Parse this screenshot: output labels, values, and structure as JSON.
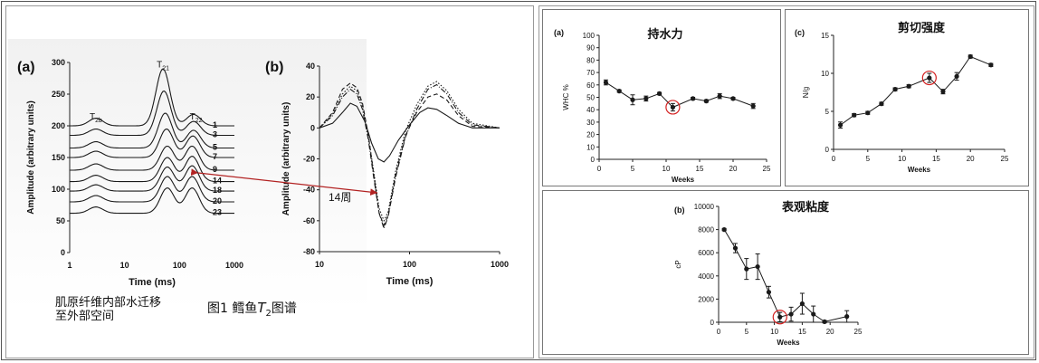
{
  "captions": {
    "left_note_line1": "肌原纤维内部水迁移",
    "left_note_line2": "至外部空间",
    "figure_label": "图1   鳕鱼",
    "figure_T": "T",
    "figure_sub": "2",
    "figure_tail": "图谱",
    "arrow_label": "14周"
  },
  "colors": {
    "curve": "#1a1a1a",
    "arrow": "#b22222",
    "circle": "#d42020"
  },
  "chart_data": [
    {
      "id": "a_left",
      "type": "line",
      "panel_label": "(a)",
      "xlabel": "Time (ms)",
      "ylabel": "Amplitude (arbitrary units)",
      "x_scale": "log",
      "xlim": [
        1,
        1000
      ],
      "ylim": [
        0,
        300
      ],
      "x_ticks": [
        "1",
        "10",
        "100",
        "1000"
      ],
      "y_ticks": [
        "0",
        "50",
        "100",
        "150",
        "200",
        "250",
        "300"
      ],
      "peak_labels": [
        {
          "text": "T",
          "sub": "2b",
          "x": 3,
          "y": 210
        },
        {
          "text": "T",
          "sub": "21",
          "x": 50,
          "y": 292
        },
        {
          "text": "T",
          "sub": "22",
          "x": 200,
          "y": 210
        }
      ],
      "series": [
        {
          "name": "1",
          "baseline": 200,
          "peaks": [
            [
              3,
              12
            ],
            [
              50,
              90
            ],
            [
              180,
              18
            ]
          ]
        },
        {
          "name": "3",
          "baseline": 185,
          "peaks": [
            [
              3,
              10
            ],
            [
              52,
              70
            ],
            [
              180,
              22
            ]
          ]
        },
        {
          "name": "5",
          "baseline": 165,
          "peaks": [
            [
              3,
              10
            ],
            [
              55,
              55
            ],
            [
              180,
              28
            ]
          ]
        },
        {
          "name": "7",
          "baseline": 150,
          "peaks": [
            [
              3,
              10
            ],
            [
              58,
              45
            ],
            [
              175,
              34
            ]
          ]
        },
        {
          "name": "9",
          "baseline": 130,
          "peaks": [
            [
              3,
              10
            ],
            [
              60,
              38
            ],
            [
              170,
              38
            ]
          ]
        },
        {
          "name": "14",
          "baseline": 112,
          "peaks": [
            [
              3,
              10
            ],
            [
              60,
              38
            ],
            [
              170,
              40
            ]
          ]
        },
        {
          "name": "18",
          "baseline": 97,
          "peaks": [
            [
              3,
              10
            ],
            [
              60,
              38
            ],
            [
              170,
              40
            ]
          ]
        },
        {
          "name": "20",
          "baseline": 80,
          "peaks": [
            [
              3,
              10
            ],
            [
              60,
              40
            ],
            [
              170,
              40
            ]
          ]
        },
        {
          "name": "23",
          "baseline": 62,
          "peaks": [
            [
              3,
              10
            ],
            [
              60,
              40
            ],
            [
              170,
              40
            ]
          ]
        }
      ]
    },
    {
      "id": "b_left",
      "type": "line",
      "panel_label": "(b)",
      "xlabel": "Time (ms)",
      "ylabel": "Amplitude (arbitrary units)",
      "x_scale": "log",
      "xlim": [
        10,
        1000
      ],
      "ylim": [
        -80,
        40
      ],
      "x_ticks": [
        "10",
        "100",
        "1000"
      ],
      "y_ticks": [
        "-80",
        "-60",
        "-40",
        "-20",
        "0",
        "20",
        "40"
      ],
      "series": [
        {
          "style": "solid",
          "points": [
            [
              10,
              0
            ],
            [
              14,
              3
            ],
            [
              18,
              10
            ],
            [
              22,
              16
            ],
            [
              26,
              14
            ],
            [
              32,
              4
            ],
            [
              38,
              -10
            ],
            [
              45,
              -20
            ],
            [
              52,
              -22
            ],
            [
              60,
              -18
            ],
            [
              75,
              -8
            ],
            [
              100,
              2
            ],
            [
              130,
              10
            ],
            [
              160,
              13
            ],
            [
              200,
              12
            ],
            [
              260,
              8
            ],
            [
              350,
              3
            ],
            [
              500,
              0
            ],
            [
              1000,
              0
            ]
          ]
        },
        {
          "style": "dashed",
          "points": [
            [
              10,
              0
            ],
            [
              14,
              10
            ],
            [
              18,
              25
            ],
            [
              22,
              29
            ],
            [
              26,
              26
            ],
            [
              30,
              16
            ],
            [
              35,
              -5
            ],
            [
              40,
              -30
            ],
            [
              46,
              -55
            ],
            [
              52,
              -63
            ],
            [
              58,
              -56
            ],
            [
              70,
              -30
            ],
            [
              90,
              -5
            ],
            [
              120,
              10
            ],
            [
              160,
              20
            ],
            [
              200,
              22
            ],
            [
              260,
              18
            ],
            [
              350,
              8
            ],
            [
              500,
              1
            ],
            [
              1000,
              0
            ]
          ]
        },
        {
          "style": "dash-dot",
          "points": [
            [
              10,
              0
            ],
            [
              14,
              8
            ],
            [
              18,
              20
            ],
            [
              22,
              25
            ],
            [
              26,
              22
            ],
            [
              30,
              12
            ],
            [
              35,
              -8
            ],
            [
              40,
              -32
            ],
            [
              46,
              -55
            ],
            [
              52,
              -65
            ],
            [
              58,
              -57
            ],
            [
              70,
              -32
            ],
            [
              90,
              -6
            ],
            [
              120,
              12
            ],
            [
              160,
              25
            ],
            [
              200,
              28
            ],
            [
              260,
              22
            ],
            [
              350,
              10
            ],
            [
              500,
              2
            ],
            [
              1000,
              0
            ]
          ]
        },
        {
          "style": "dotted",
          "points": [
            [
              10,
              0
            ],
            [
              14,
              9
            ],
            [
              18,
              22
            ],
            [
              22,
              27
            ],
            [
              26,
              24
            ],
            [
              30,
              14
            ],
            [
              35,
              -6
            ],
            [
              40,
              -28
            ],
            [
              46,
              -52
            ],
            [
              52,
              -60
            ],
            [
              58,
              -54
            ],
            [
              70,
              -28
            ],
            [
              90,
              -2
            ],
            [
              120,
              15
            ],
            [
              160,
              27
            ],
            [
              200,
              30
            ],
            [
              260,
              24
            ],
            [
              350,
              12
            ],
            [
              500,
              3
            ],
            [
              1000,
              0
            ]
          ]
        }
      ]
    },
    {
      "id": "a_right",
      "type": "line",
      "panel_label": "(a)",
      "title": "持水力",
      "xlabel": "Weeks",
      "ylabel": "WHC %",
      "xlim": [
        0,
        25
      ],
      "ylim": [
        0,
        100
      ],
      "x_ticks": [
        "0",
        "5",
        "10",
        "15",
        "20",
        "25"
      ],
      "y_ticks": [
        "0",
        "10",
        "20",
        "30",
        "40",
        "50",
        "60",
        "70",
        "80",
        "90",
        "100"
      ],
      "x": [
        1,
        3,
        5,
        7,
        9,
        11,
        14,
        16,
        18,
        20,
        23
      ],
      "y": [
        62,
        55,
        48,
        49,
        53,
        42,
        49,
        47,
        51,
        49,
        43
      ],
      "err": [
        2,
        1,
        4,
        2,
        1,
        3,
        1,
        1,
        2,
        1,
        2
      ],
      "highlight_index": 5
    },
    {
      "id": "c_right",
      "type": "line",
      "panel_label": "(c)",
      "title": "剪切强度",
      "xlabel": "Weeks",
      "ylabel": "N/g",
      "xlim": [
        0,
        25
      ],
      "ylim": [
        0,
        15
      ],
      "x_ticks": [
        "0",
        "5",
        "10",
        "15",
        "20",
        "25"
      ],
      "y_ticks": [
        "0",
        "5",
        "10",
        "15"
      ],
      "x": [
        1,
        3,
        5,
        7,
        9,
        11,
        14,
        16,
        18,
        20,
        23
      ],
      "y": [
        3.2,
        4.5,
        4.8,
        6.0,
        7.9,
        8.3,
        9.4,
        7.6,
        9.6,
        12.2,
        11.1
      ],
      "err": [
        0.4,
        0.2,
        0.2,
        0.2,
        0.2,
        0.2,
        0.6,
        0.3,
        0.5,
        0.2,
        0.2
      ],
      "highlight_index": 6
    },
    {
      "id": "b_right",
      "type": "line",
      "panel_label": "(b)",
      "title": "表观粘度",
      "xlabel": "Weeks",
      "ylabel": "cP",
      "xlim": [
        0,
        25
      ],
      "ylim": [
        0,
        10000
      ],
      "x_ticks": [
        "0",
        "5",
        "10",
        "15",
        "20",
        "25"
      ],
      "y_ticks": [
        "0",
        "2000",
        "4000",
        "6000",
        "8000",
        "10000"
      ],
      "x": [
        1,
        3,
        5,
        7,
        9,
        11,
        13,
        15,
        17,
        19,
        23
      ],
      "y": [
        8000,
        6400,
        4600,
        4800,
        2600,
        450,
        700,
        1600,
        700,
        50,
        500
      ],
      "err": [
        100,
        400,
        900,
        1100,
        500,
        400,
        600,
        900,
        700,
        100,
        500
      ],
      "highlight_index": 5
    }
  ]
}
